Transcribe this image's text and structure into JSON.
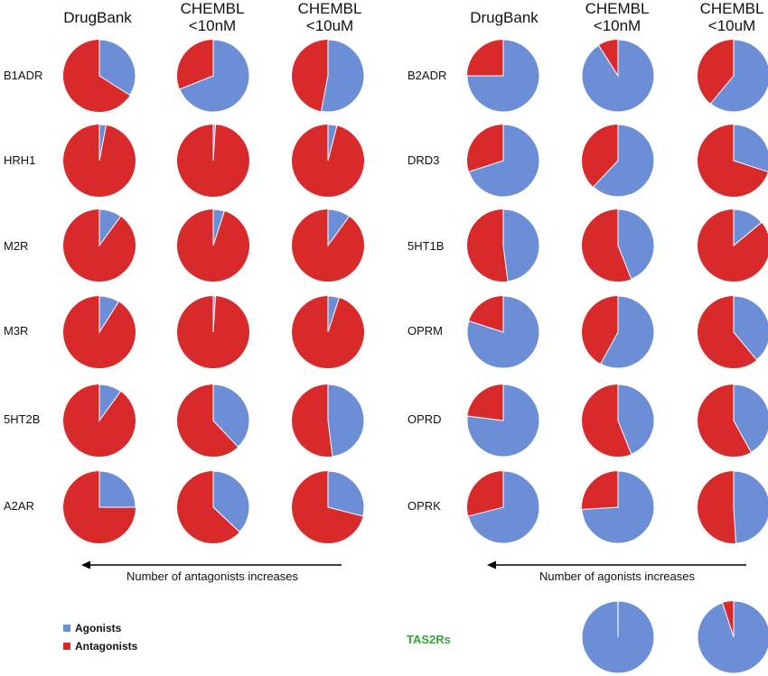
{
  "colors": {
    "agonist": "#6B8ED6",
    "antagonist": "#D82A2A",
    "tas2r_label": "#3BA23B"
  },
  "legend": {
    "agonists": "Agonists",
    "antagonists": "Antagonists"
  },
  "left_columns": [
    "DrugBank",
    "CHEMBL\n<10nM",
    "CHEMBL\n<10uM"
  ],
  "right_columns": [
    "DrugBank",
    "CHEMBL\n<10nM",
    "CHEMBL\n<10uM"
  ],
  "arrows": {
    "left": "Number of antagonists increases",
    "right": "Number of agonists increases"
  },
  "tas2r": {
    "label": "TAS2Rs"
  },
  "chart_data": {
    "type": "pie",
    "value_meaning": "fraction of agonists (remainder antagonists)",
    "left_panel": [
      {
        "receptor": "B1ADR",
        "agonist_fraction": [
          0.34,
          0.69,
          0.53
        ]
      },
      {
        "receptor": "HRH1",
        "agonist_fraction": [
          0.03,
          0.01,
          0.04
        ]
      },
      {
        "receptor": "M2R",
        "agonist_fraction": [
          0.1,
          0.05,
          0.1
        ]
      },
      {
        "receptor": "M3R",
        "agonist_fraction": [
          0.09,
          0.01,
          0.05
        ]
      },
      {
        "receptor": "5HT2B",
        "agonist_fraction": [
          0.1,
          0.38,
          0.48
        ]
      },
      {
        "receptor": "A2AR",
        "agonist_fraction": [
          0.25,
          0.37,
          0.29
        ]
      }
    ],
    "right_panel": [
      {
        "receptor": "B2ADR",
        "agonist_fraction": [
          0.75,
          0.91,
          0.61
        ]
      },
      {
        "receptor": "DRD3",
        "agonist_fraction": [
          0.7,
          0.62,
          0.3
        ]
      },
      {
        "receptor": "5HT1B",
        "agonist_fraction": [
          0.48,
          0.44,
          0.14
        ]
      },
      {
        "receptor": "OPRM",
        "agonist_fraction": [
          0.8,
          0.58,
          0.39
        ]
      },
      {
        "receptor": "OPRD",
        "agonist_fraction": [
          0.77,
          0.44,
          0.42
        ]
      },
      {
        "receptor": "OPRK",
        "agonist_fraction": [
          0.71,
          0.74,
          0.49
        ]
      }
    ],
    "tas2r": {
      "receptor": "TAS2Rs",
      "agonist_fraction": [
        null,
        0.999,
        0.95
      ]
    }
  }
}
